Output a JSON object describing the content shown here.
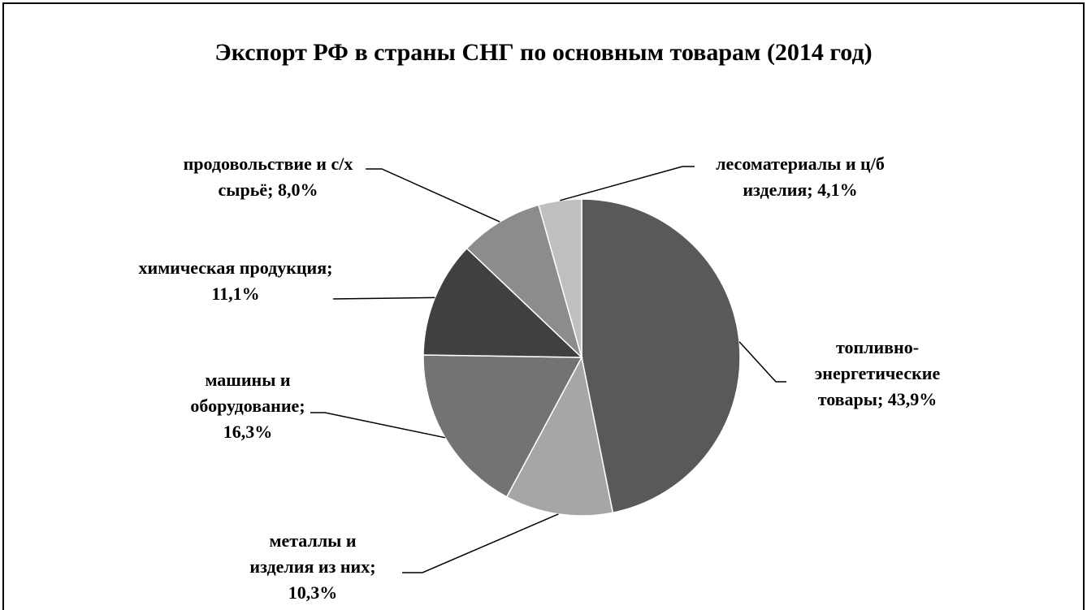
{
  "chart_data": {
    "type": "pie",
    "title": "Экспорт РФ в страны СНГ по основным товарам (2014 год)",
    "values": [
      43.9,
      10.3,
      16.3,
      11.1,
      8.0,
      4.1
    ],
    "value_labels": [
      "топливно-энергетические товары; 43,9%",
      "металлы и изделия из них; 10,3%",
      "машины и оборудование; 16,3%",
      "химическая продукция; 11,1%",
      "продовольствие и с/х сырьё; 8,0%",
      "лесоматериалы и ц/б изделия; 4,1%"
    ],
    "colors": [
      "#595959",
      "#a6a6a6",
      "#737373",
      "#404040",
      "#8c8c8c",
      "#bfbfbf"
    ]
  }
}
